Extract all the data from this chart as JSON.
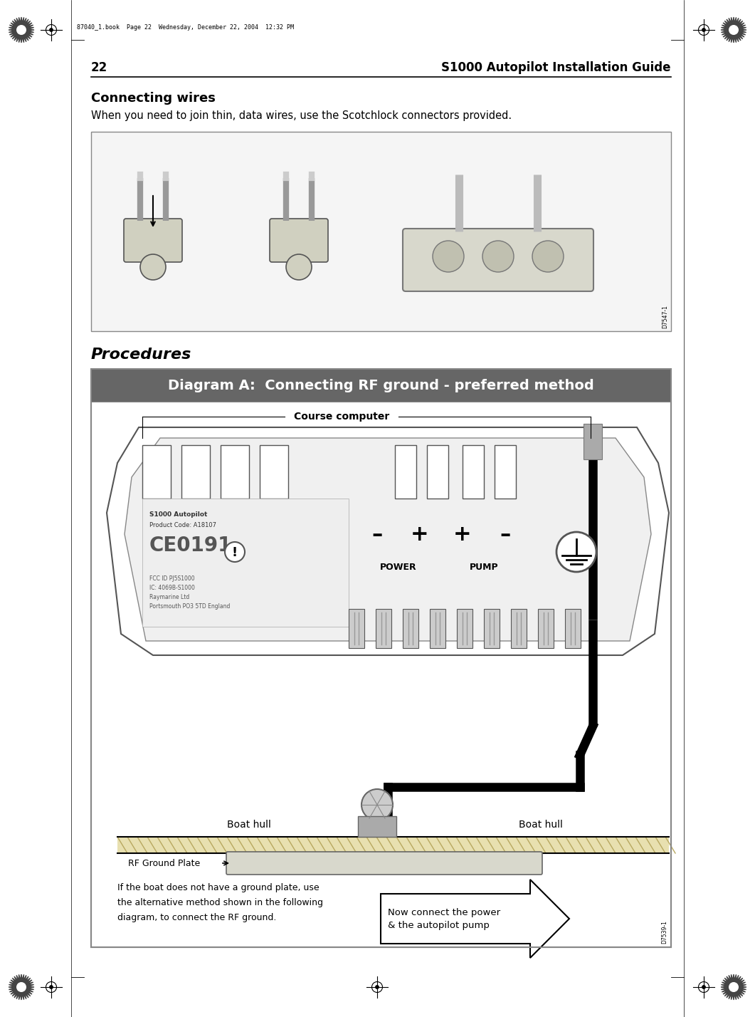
{
  "page_width": 10.61,
  "page_height": 14.28,
  "bg_color": "#ffffff",
  "page_number": "22",
  "page_title": "S1000 Autopilot Installation Guide",
  "section_heading": "Connecting wires",
  "section_body": "When you need to join thin, data wires, use the Scotchlock connectors provided.",
  "procedures_heading": "Procedures",
  "diagram_title": "Diagram A:  Connecting RF ground - preferred method",
  "diagram_title_bg": "#666666",
  "diagram_title_color": "#ffffff",
  "course_computer_label": "Course computer",
  "power_label": "POWER",
  "pump_label": "PUMP",
  "boat_hull_left": "Boat hull",
  "boat_hull_right": "Boat hull",
  "rf_ground_label": "RF Ground Plate",
  "alt_text_line1": "If the boat does not have a ground plate, use",
  "alt_text_line2": "the alternative method shown in the following",
  "alt_text_line3": "diagram, to connect the RF ground.",
  "next_label_line1": "Now connect the power",
  "next_label_line2": "& the autopilot pump",
  "label_d7547": "D7547-1",
  "label_d7539": "D7539-1",
  "autopilot_line1": "S1000 Autopilot",
  "autopilot_line2": "Product Code: A18107",
  "fcc_line1": "FCC ID PJ5S1000",
  "fcc_line2": "IC: 4069B-S1000",
  "fcc_line3": "Raymarine Ltd",
  "fcc_line4": "Portsmouth PO3 5TD England",
  "header_stamp_text": "87040_1.book  Page 22  Wednesday, December 22, 2004  12:32 PM"
}
